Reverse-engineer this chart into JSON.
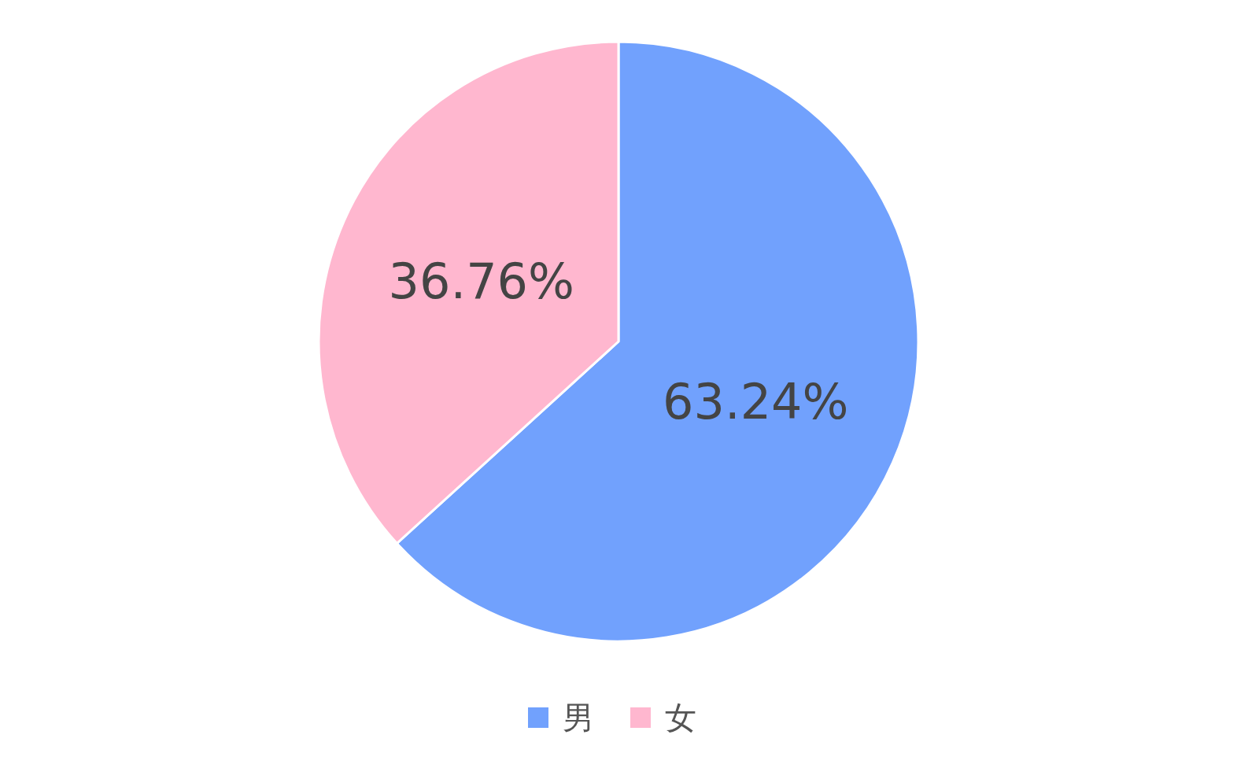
{
  "chart_data": {
    "type": "pie",
    "categories": [
      "男",
      "女"
    ],
    "values": [
      63.24,
      36.76
    ],
    "colors": [
      "#71a1fd",
      "#ffb7cf"
    ],
    "value_labels": [
      "63.24%",
      "36.76%"
    ],
    "legend": "bottom"
  }
}
